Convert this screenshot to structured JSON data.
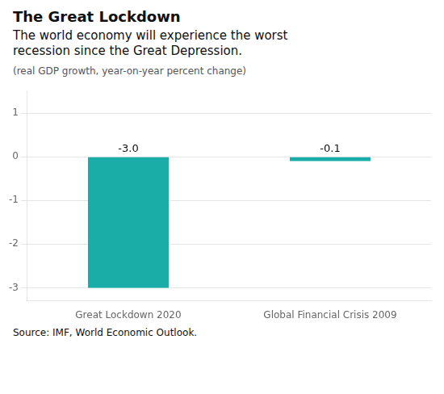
{
  "chart_data": {
    "type": "bar",
    "title": "The Great Lockdown",
    "subtitle": "The world economy will experience the worst\nrecession since the Great Depression.",
    "note": "(real GDP growth, year-on-year percent change)",
    "source": "Source: IMF, World Economic Outlook.",
    "categories": [
      "Great Lockdown 2020",
      "Global Financial Crisis 2009"
    ],
    "values": [
      -3.0,
      -0.1
    ],
    "value_labels": [
      "-3.0",
      "-0.1"
    ],
    "data_labels": true,
    "color": "#1aada8",
    "ylim": [
      -3.3,
      1.5
    ],
    "yticks": [
      1,
      0,
      -1,
      -2,
      -3
    ],
    "grid": true
  }
}
